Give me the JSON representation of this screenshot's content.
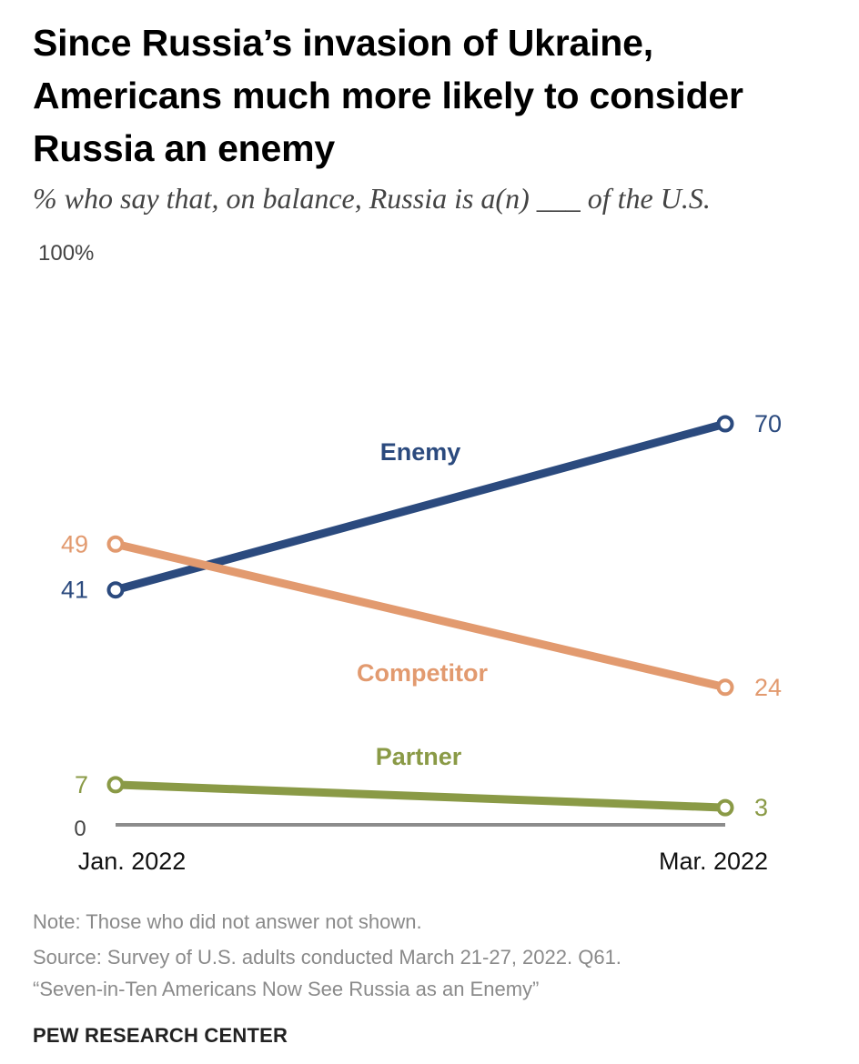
{
  "header": {
    "title": "Since Russia’s invasion of Ukraine, Americans much more likely to consider Russia an enemy",
    "subtitle": "% who say that, on balance, Russia is a(n) ___ of the U.S."
  },
  "footer": {
    "note": "Note: Those who did not answer not shown.",
    "source_line1": "Source: Survey of U.S. adults conducted March 21-27, 2022. Q61.",
    "source_line2": "“Seven-in-Ten Americans Now See Russia as an Enemy”",
    "brand": "PEW RESEARCH CENTER"
  },
  "chart_data": {
    "type": "line",
    "title": "Since Russia’s invasion of Ukraine, Americans much more likely to consider Russia an enemy",
    "subtitle": "% who say that, on balance, Russia is a(n) ___ of the U.S.",
    "x": [
      "Jan. 2022",
      "Mar. 2022"
    ],
    "ylim": [
      0,
      100
    ],
    "y_tick_labels": [
      "100%",
      "0"
    ],
    "grid": false,
    "series": [
      {
        "name": "Enemy",
        "values": [
          41,
          70
        ],
        "color": "#2b4a7e"
      },
      {
        "name": "Competitor",
        "values": [
          49,
          24
        ],
        "color": "#e29a6f"
      },
      {
        "name": "Partner",
        "values": [
          7,
          3
        ],
        "color": "#8a9a46"
      }
    ],
    "baseline_color": "#8c8c8c"
  }
}
